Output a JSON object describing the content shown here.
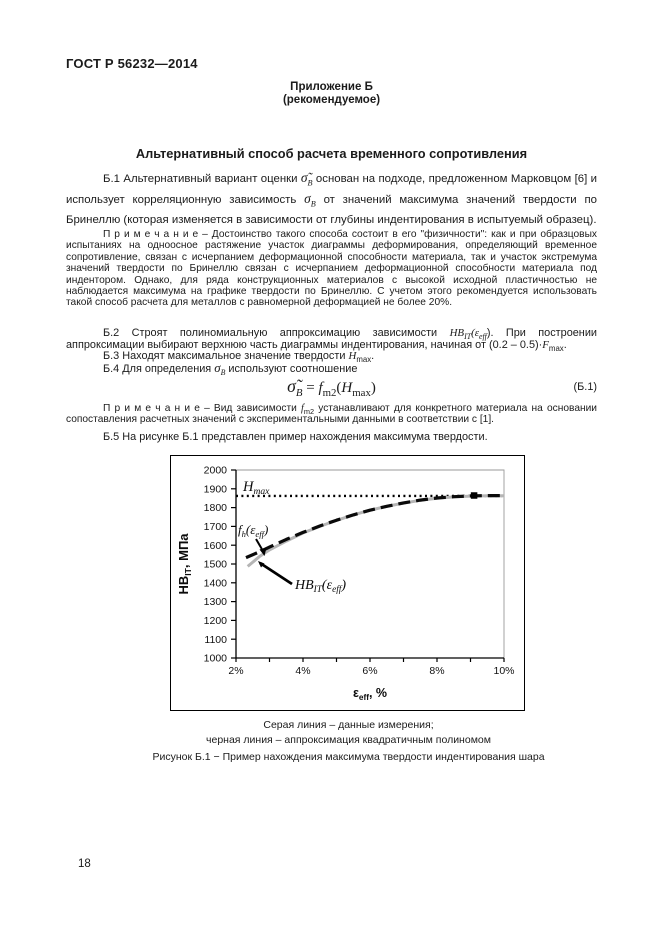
{
  "page": {
    "header": "ГОСТ Р 56232—2014",
    "page_number": "18"
  },
  "annex": {
    "label": "Приложение Б",
    "kind": "(рекомендуемое)",
    "title": "Альтернативный способ расчета временного сопротивления"
  },
  "b1": {
    "s1": "Б.1 Альтернативный вариант оценки ",
    "f1main": "σ̃",
    "f1sub": "В",
    "s2": " основан на подходе, предложенном Марковцом [6] и использует корреляционную зависимость ",
    "f2main": "σ",
    "f2sub": "В",
    "s3": " от значений максимума значений твердости по Бринеллю (которая изменяется в зависимости от глубины индентирования в испытуемый образец)."
  },
  "note1": {
    "label": "П р и м е ч а н и е",
    "body": " – Достоинство такого способа состоит в его \"физичности\": как и при образцовых испытаниях на одноосное растяжение участок диаграммы деформирования, определяющий временное сопротивление, связан с исчерпанием деформационной способности материала, так и участок экстремума значений твердости по Бринеллю связан с исчерпанием деформационной способности материала под индентором. Однако, для ряда конструкционных материалов с высокой исходной пластичностью не наблюдается максимума на графике твердости по Бринеллю. С учетом этого рекомендуется использовать такой способ расчета для металлов с равномерной деформацией не более 20%."
  },
  "b2": {
    "s1": "Б.2 Строят полиномиальную аппроксимацию зависимости ",
    "f1main": "HB",
    "f1sub": "IT",
    "s2": "(ε",
    "f2sub": "eff",
    "s3": "). При построении аппроксимации выбирают верхнюю часть диаграммы индентирования, начиная от (0.2 – 0.5)·",
    "f3main": "F",
    "f3sub": "max",
    "s4": "."
  },
  "b3": {
    "s1": "Б.3 Находят максимальное значение твердости ",
    "fmain": "H",
    "fsub": "max",
    "s2": "."
  },
  "b4": {
    "s1": "Б.4 Для определения ",
    "fmain": "σ",
    "fsub": "В",
    "s2": " используют соотношение"
  },
  "formula": {
    "lhs_main": "σ̃",
    "lhs_sub": "В",
    "equals": " = ",
    "f_main": "f",
    "f_sub": "m2",
    "open": "(",
    "arg_main": "H",
    "arg_sub": "max",
    "close": ")",
    "number": "(Б.1)"
  },
  "note2": {
    "label": "П р и м е ч а н и е",
    "s1": " – Вид зависимости ",
    "fmain": "f",
    "fsub": "m2",
    "s2": " устанавливают для конкретного материала на основании сопоставления расчетных значений с экспериментальными данными в соответствии с [1]."
  },
  "b5": {
    "text": "Б.5 На рисунке Б.1 представлен пример нахождения максимума твердости."
  },
  "figure": {
    "legend_line1": "Серая линия – данные измерения;",
    "legend_line2": "черная линия – аппроксимация квадратичным полиномом",
    "caption": "Рисунок Б.1 − Пример нахождения максимума твердости индентирования шара"
  },
  "chart_data": {
    "type": "line",
    "title": "",
    "xlabel": "ε_eff, %",
    "ylabel": "НВ_IT, МПа",
    "xlim": [
      2,
      10
    ],
    "ylim": [
      1000,
      2000
    ],
    "grid": false,
    "xlabel_parts": [
      {
        "t": "ε"
      },
      {
        "t": "eff",
        "sub": true
      },
      {
        "t": ", %"
      }
    ],
    "ylabel_parts": [
      {
        "t": "НВ"
      },
      {
        "t": "IT",
        "sub": true
      },
      {
        "t": ", МПа"
      }
    ],
    "y_ticks": [
      1000,
      1100,
      1200,
      1300,
      1400,
      1500,
      1600,
      1700,
      1800,
      1900,
      2000
    ],
    "x_ticks": [
      2,
      3,
      4,
      5,
      6,
      7,
      8,
      9,
      10
    ],
    "x_label_values": [
      2,
      4,
      6,
      8,
      10
    ],
    "x_tick_labels": [
      "2%",
      "4%",
      "6%",
      "8%",
      "10%"
    ],
    "h_max": {
      "value": 1862,
      "label_main": "H",
      "label_sub": "max"
    },
    "series": [
      {
        "name": "HB_IT(ε_eff)",
        "legend": "данные измерения (серая линия)",
        "color": "#b5b5b5",
        "dash": "solid",
        "x": [
          2.35,
          2.7,
          3,
          3.5,
          4,
          4.5,
          5,
          5.5,
          6,
          6.5,
          7,
          7.5,
          8,
          8.5,
          9,
          9.5,
          10
        ],
        "y": [
          1487,
          1540,
          1575,
          1622,
          1665,
          1700,
          1732,
          1761,
          1786,
          1807,
          1824,
          1839,
          1850,
          1857,
          1861,
          1863,
          1863
        ]
      },
      {
        "name": "f_h(ε_eff)",
        "legend": "аппроксимация квадратичным полиномом (черная линия)",
        "color": "#0a0a0a",
        "dash": "dashed",
        "x": [
          2.3,
          2.7,
          3,
          3.5,
          4,
          4.5,
          5,
          5.5,
          6,
          6.5,
          7,
          7.5,
          8,
          8.5,
          9,
          9.5,
          10
        ],
        "y": [
          1534,
          1565,
          1590,
          1631,
          1668,
          1702,
          1733,
          1761,
          1786,
          1807,
          1825,
          1840,
          1851,
          1858,
          1862,
          1864,
          1864
        ]
      }
    ],
    "max_marker": {
      "x": 9.1,
      "y": 1863
    },
    "annotations": [
      {
        "id": "hmax-label",
        "parts": [
          {
            "t": "H"
          },
          {
            "t": "max",
            "sub": true
          }
        ]
      },
      {
        "id": "fh-label",
        "parts": [
          {
            "t": "f"
          },
          {
            "t": "h",
            "sub": true
          },
          {
            "t": "("
          },
          {
            "t": "ε"
          },
          {
            "t": "eff",
            "sub": true
          },
          {
            "t": ")"
          }
        ]
      },
      {
        "id": "hb-label",
        "parts": [
          {
            "t": "HB"
          },
          {
            "t": "IT",
            "sub": true
          },
          {
            "t": "("
          },
          {
            "t": "ε"
          },
          {
            "t": "eff",
            "sub": true
          },
          {
            "t": ")"
          }
        ]
      }
    ]
  }
}
